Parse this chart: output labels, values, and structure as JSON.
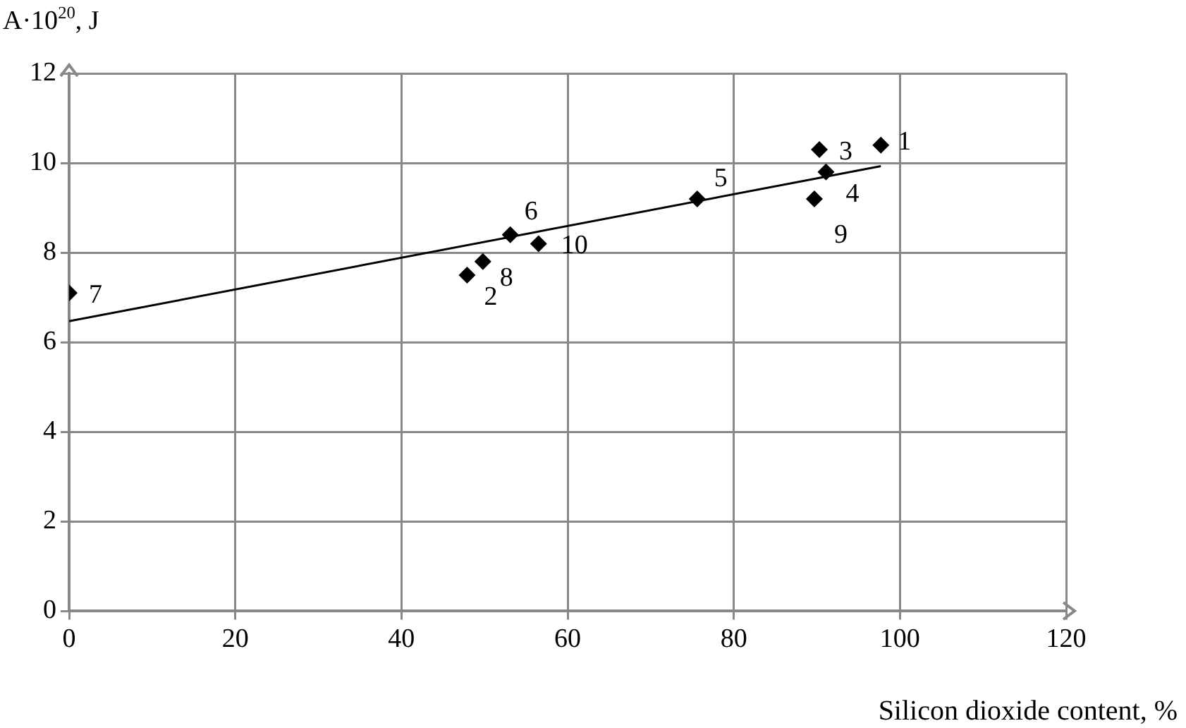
{
  "chart_data": {
    "type": "scatter",
    "xlabel": "Silicon dioxide content, %",
    "ylabel": "A·10$^{20}$, J",
    "xlim": [
      0,
      120
    ],
    "xticks": [
      0,
      20,
      40,
      60,
      80,
      100,
      120
    ],
    "ylim": [
      0,
      12
    ],
    "yticks": [
      0,
      2,
      4,
      6,
      8,
      10,
      12
    ],
    "grid": true,
    "legend": false,
    "marker": "diamond",
    "series": [
      {
        "color": "#000000",
        "x": [
          97.7,
          47.9,
          90.3,
          91.1,
          75.6,
          53.1,
          0,
          49.8,
          89.7,
          56.5
        ],
        "values": [
          10.4,
          7.5,
          10.3,
          9.8,
          9.2,
          8.4,
          7.1,
          7.8,
          9.2,
          8.2
        ]
      },
      {
        "type": "line",
        "color": "#000000",
        "marker": "none",
        "line_style": "solid",
        "x": [
          0,
          97.7
        ],
        "values": [
          6.47,
          9.93
        ]
      }
    ],
    "annotations": [
      {
        "text": "1",
        "x": 97.7,
        "y": 10.4
      },
      {
        "text": "2",
        "x": 47.9,
        "y": 7.5
      },
      {
        "text": "3",
        "x": 90.3,
        "y": 10.3
      },
      {
        "text": "4",
        "x": 91.1,
        "y": 9.8
      },
      {
        "text": "5",
        "x": 75.6,
        "y": 9.2
      },
      {
        "text": "6",
        "x": 53.1,
        "y": 8.4
      },
      {
        "text": "7",
        "x": 0,
        "y": 7.1
      },
      {
        "text": "8",
        "x": 49.8,
        "y": 7.8
      },
      {
        "text": "9",
        "x": 89.7,
        "y": 9.2
      },
      {
        "text": "10",
        "x": 56.5,
        "y": 8.2
      }
    ]
  }
}
